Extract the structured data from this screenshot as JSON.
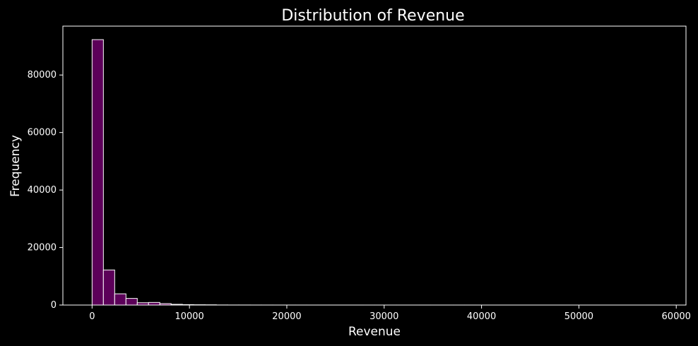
{
  "chart_data": {
    "type": "bar",
    "subtype": "histogram",
    "title": "Distribution of Revenue",
    "xlabel": "Revenue",
    "ylabel": "Frequency",
    "xlim": [
      -3000,
      61000
    ],
    "ylim": [
      0,
      97000
    ],
    "xticks": [
      0,
      10000,
      20000,
      30000,
      40000,
      50000,
      60000
    ],
    "yticks": [
      0,
      20000,
      40000,
      60000,
      80000
    ],
    "bin_start": 0,
    "bin_width": 1160,
    "values": [
      92300,
      12200,
      3900,
      2300,
      800,
      900,
      500,
      250,
      150,
      100,
      80,
      30,
      20,
      15,
      10,
      8,
      6,
      5,
      4,
      3,
      3,
      2,
      2,
      2,
      1,
      1,
      1,
      1,
      1,
      1,
      1,
      1,
      1,
      1,
      0,
      0,
      1,
      0,
      0,
      0,
      0,
      0,
      0,
      0,
      0,
      0,
      0,
      0,
      0,
      1
    ],
    "bar_color": "#5c0059",
    "edge_color": "#ffffff",
    "background": "#000000",
    "grid": false
  }
}
